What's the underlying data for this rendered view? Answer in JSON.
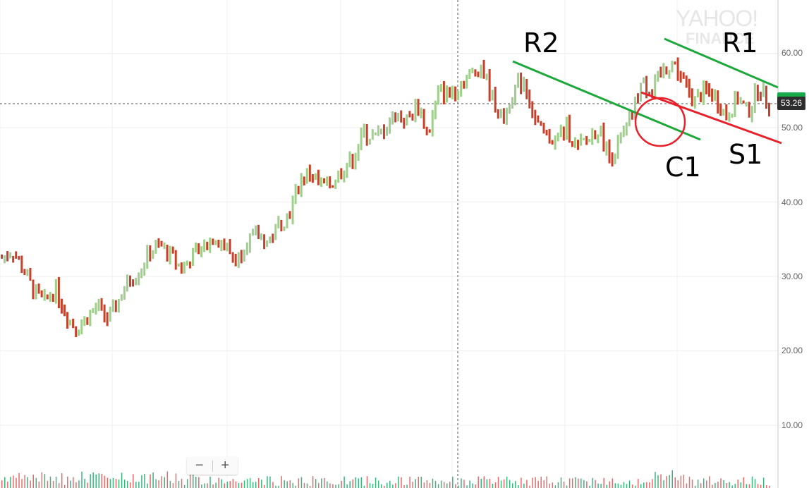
{
  "chart_data": {
    "type": "ohlc",
    "title": "",
    "xlabel": "",
    "ylabel": "",
    "ylim": [
      0,
      65
    ],
    "y_ticks": [
      "10.00",
      "20.00",
      "30.00",
      "40.00",
      "50.00",
      "60.00"
    ],
    "grid": true,
    "current_price": "53.26",
    "colors": {
      "up": "#9ed08c",
      "down": "#c8402a",
      "vol_up": "#3cb57d",
      "vol_down": "#e86a6a",
      "resistance": "#1ea83c",
      "support": "#e8202a"
    },
    "approx_close_series": [
      32.5,
      33.5,
      31,
      28,
      26.5,
      28.5,
      25,
      23,
      24.5,
      26,
      24,
      27,
      29.5,
      31,
      33.5,
      34,
      32.5,
      31,
      33,
      34,
      35.5,
      34,
      32,
      35,
      35.5,
      34.5,
      37,
      38.5,
      43,
      44,
      42,
      42.5,
      44.5,
      46,
      49.5,
      48.5,
      50,
      52,
      51,
      53,
      49,
      55,
      54.5,
      56,
      57,
      58.5,
      54,
      51,
      55,
      56.5,
      51,
      48.5,
      48.5,
      50,
      47,
      48.5,
      50,
      46,
      48,
      51,
      56,
      55,
      57.5,
      59,
      56,
      53.5,
      55,
      54,
      51.5,
      54,
      52,
      55.5,
      53.26
    ],
    "annotations": [
      {
        "label": "R2",
        "type": "resistance trendline",
        "color": "green",
        "from_price": 59,
        "to_price": 48.5
      },
      {
        "label": "R1",
        "type": "resistance trendline",
        "color": "green",
        "from_price": 62,
        "to_price": 55
      },
      {
        "label": "S1",
        "type": "support trendline",
        "color": "red",
        "from_price": 55,
        "to_price": 48
      },
      {
        "label": "C1",
        "type": "circled crossover",
        "color": "red"
      }
    ]
  },
  "labels": {
    "r2": "R2",
    "r1": "R1",
    "s1": "S1",
    "c1": "C1"
  },
  "price_tag": "53.26",
  "watermark": {
    "main": "YAHOO!",
    "sub": "FINANCE"
  },
  "zoom_controls": {
    "minus": "−",
    "plus": "+"
  }
}
